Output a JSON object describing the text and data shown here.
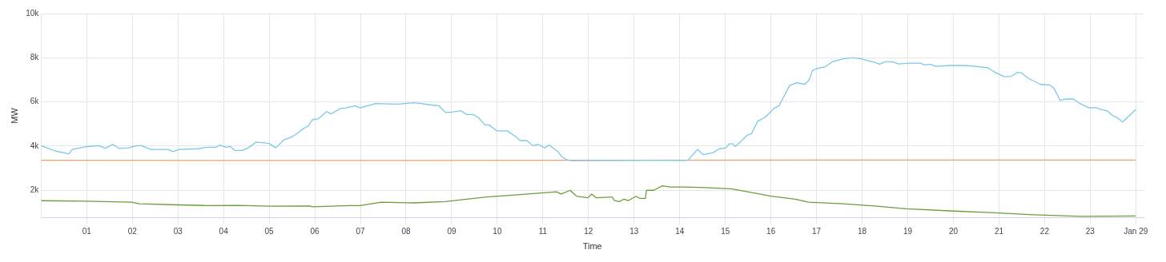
{
  "chart_data": {
    "type": "line",
    "xlabel": "Time",
    "ylabel": "MW",
    "grid": true,
    "legend": false,
    "marker": "none",
    "line_style": "solid",
    "xlim": [
      0,
      24.17
    ],
    "ylim": [
      750,
      10000
    ],
    "xticks": [
      {
        "value": 1,
        "label": "01"
      },
      {
        "value": 2,
        "label": "02"
      },
      {
        "value": 3,
        "label": "03"
      },
      {
        "value": 4,
        "label": "04"
      },
      {
        "value": 5,
        "label": "05"
      },
      {
        "value": 6,
        "label": "06"
      },
      {
        "value": 7,
        "label": "07"
      },
      {
        "value": 8,
        "label": "08"
      },
      {
        "value": 9,
        "label": "09"
      },
      {
        "value": 10,
        "label": "10"
      },
      {
        "value": 11,
        "label": "11"
      },
      {
        "value": 12,
        "label": "12"
      },
      {
        "value": 13,
        "label": "13"
      },
      {
        "value": 14,
        "label": "14"
      },
      {
        "value": 15,
        "label": "15"
      },
      {
        "value": 16,
        "label": "16"
      },
      {
        "value": 17,
        "label": "17"
      },
      {
        "value": 18,
        "label": "18"
      },
      {
        "value": 19,
        "label": "19"
      },
      {
        "value": 20,
        "label": "20"
      },
      {
        "value": 21,
        "label": "21"
      },
      {
        "value": 22,
        "label": "22"
      },
      {
        "value": 23,
        "label": "23"
      },
      {
        "value": 24,
        "label": "Jan 29"
      }
    ],
    "yticks": [
      {
        "value": 2000,
        "label": "2k"
      },
      {
        "value": 4000,
        "label": "4k"
      },
      {
        "value": 6000,
        "label": "6k"
      },
      {
        "value": 8000,
        "label": "8k"
      },
      {
        "value": 10000,
        "label": "10k"
      }
    ],
    "series": [
      {
        "color": "#7cc8e8",
        "x": [
          0,
          0.31,
          0.61,
          0.68,
          1.01,
          1.27,
          1.41,
          1.57,
          1.71,
          1.92,
          2.09,
          2.2,
          2.41,
          2.79,
          2.89,
          3.02,
          3.45,
          3.63,
          3.84,
          3.92,
          4.06,
          4.15,
          4.25,
          4.41,
          4.55,
          4.71,
          5.0,
          5.14,
          5.32,
          5.46,
          5.6,
          5.72,
          5.86,
          5.95,
          6.07,
          6.26,
          6.36,
          6.56,
          6.68,
          6.89,
          6.99,
          7.11,
          7.34,
          7.81,
          7.99,
          8.16,
          8.33,
          8.56,
          8.72,
          8.86,
          8.98,
          9.21,
          9.33,
          9.47,
          9.59,
          9.73,
          9.82,
          9.99,
          10.22,
          10.39,
          10.51,
          10.65,
          10.78,
          10.9,
          11.04,
          11.14,
          11.26,
          11.33,
          11.42,
          11.53,
          11.65,
          13.57,
          14.09,
          14.18,
          14.39,
          14.52,
          14.73,
          14.87,
          15.01,
          15.08,
          15.17,
          15.22,
          15.36,
          15.48,
          15.57,
          15.71,
          15.87,
          15.95,
          16.06,
          16.18,
          16.41,
          16.56,
          16.74,
          16.84,
          16.91,
          17.0,
          17.18,
          17.35,
          17.58,
          17.79,
          17.98,
          18.15,
          18.24,
          18.38,
          18.5,
          18.67,
          18.8,
          19.02,
          19.27,
          19.37,
          19.49,
          19.62,
          19.9,
          20.24,
          20.49,
          20.75,
          20.94,
          21.12,
          21.27,
          21.41,
          21.5,
          21.64,
          21.9,
          22.11,
          22.2,
          22.34,
          22.46,
          22.63,
          22.77,
          22.98,
          23.12,
          23.24,
          23.37,
          23.49,
          23.61,
          23.71,
          24.0
        ],
        "values": [
          4020,
          3780,
          3650,
          3850,
          3980,
          4020,
          3900,
          4080,
          3900,
          3920,
          4020,
          4020,
          3850,
          3850,
          3750,
          3850,
          3880,
          3950,
          3950,
          4050,
          3950,
          3980,
          3800,
          3800,
          3930,
          4180,
          4120,
          3920,
          4280,
          4380,
          4550,
          4750,
          4920,
          5200,
          5230,
          5560,
          5460,
          5700,
          5730,
          5830,
          5730,
          5800,
          5930,
          5900,
          5930,
          5960,
          5930,
          5860,
          5830,
          5530,
          5530,
          5600,
          5430,
          5430,
          5290,
          4960,
          4960,
          4690,
          4690,
          4450,
          4250,
          4250,
          4020,
          4080,
          3920,
          4050,
          3850,
          3750,
          3510,
          3380,
          3340,
          3360,
          3350,
          3360,
          3850,
          3610,
          3700,
          3880,
          3920,
          4100,
          4100,
          3980,
          4250,
          4500,
          4550,
          5130,
          5300,
          5460,
          5700,
          5830,
          6740,
          6870,
          6800,
          7000,
          7420,
          7510,
          7580,
          7820,
          7950,
          8000,
          7950,
          7850,
          7820,
          7710,
          7820,
          7820,
          7720,
          7750,
          7750,
          7680,
          7710,
          7610,
          7650,
          7650,
          7610,
          7550,
          7310,
          7140,
          7160,
          7340,
          7310,
          7070,
          6800,
          6770,
          6640,
          6070,
          6130,
          6130,
          5930,
          5730,
          5750,
          5660,
          5600,
          5390,
          5260,
          5090,
          5660
        ]
      },
      {
        "color": "#e8a070",
        "x": [
          0,
          6,
          12,
          18,
          24
        ],
        "values": [
          3360,
          3350,
          3360,
          3370,
          3370
        ]
      },
      {
        "color": "#6a9e3a",
        "x": [
          0,
          1.01,
          1.99,
          2.15,
          3.02,
          3.63,
          4.32,
          5.02,
          5.89,
          5.95,
          6.77,
          6.99,
          7.46,
          8.16,
          8.86,
          9.76,
          10.26,
          11.3,
          11.4,
          11.6,
          11.74,
          11.99,
          12.07,
          12.17,
          12.52,
          12.57,
          12.68,
          12.78,
          12.87,
          13.04,
          13.13,
          13.25,
          13.27,
          13.43,
          13.62,
          13.79,
          14.09,
          14.44,
          15.13,
          15.66,
          16.01,
          16.53,
          16.83,
          17.58,
          18.27,
          18.97,
          20.02,
          20.72,
          21.76,
          22.81,
          24.0
        ],
        "values": [
          1530,
          1510,
          1460,
          1390,
          1340,
          1310,
          1320,
          1280,
          1290,
          1250,
          1310,
          1310,
          1460,
          1430,
          1490,
          1700,
          1770,
          1930,
          1830,
          2000,
          1730,
          1660,
          1830,
          1660,
          1700,
          1530,
          1490,
          1600,
          1530,
          1730,
          1630,
          1630,
          2000,
          2000,
          2200,
          2150,
          2150,
          2130,
          2070,
          1870,
          1730,
          1600,
          1460,
          1390,
          1290,
          1160,
          1060,
          1000,
          890,
          820,
          840
        ]
      }
    ]
  }
}
